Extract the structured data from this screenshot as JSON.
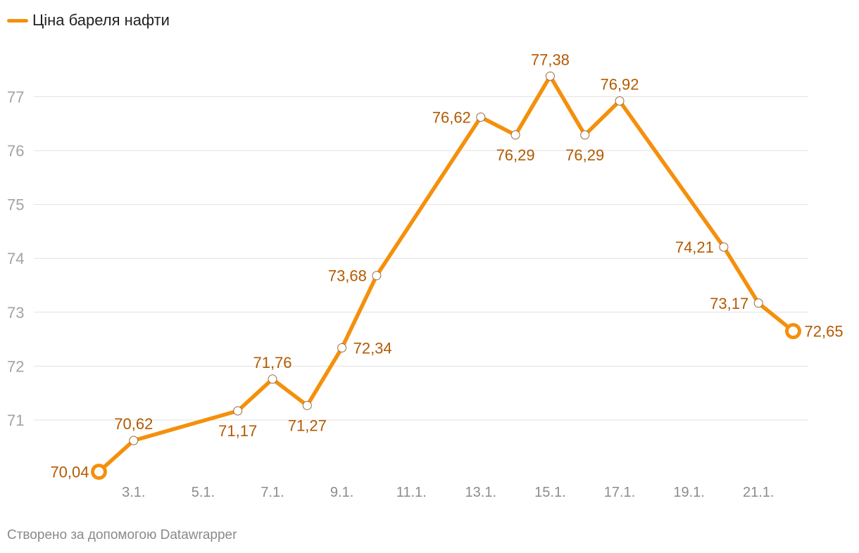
{
  "legend": {
    "label": "Ціна бареля нафти",
    "color": "#f4900c"
  },
  "footer": {
    "credit": "Створено за допомогою Datawrapper"
  },
  "chart_data": {
    "type": "line",
    "title": "",
    "xlabel": "",
    "ylabel": "",
    "ylim": [
      70,
      77.7
    ],
    "yticks": [
      71,
      72,
      73,
      74,
      75,
      76,
      77
    ],
    "xticks": [
      3,
      5,
      7,
      9,
      11,
      13,
      15,
      17,
      19,
      21
    ],
    "xtick_labels": [
      "3.1.",
      "5.1.",
      "7.1.",
      "9.1.",
      "11.1.",
      "13.1.",
      "15.1.",
      "17.1.",
      "19.1.",
      "21.1."
    ],
    "grid": true,
    "legend_position": "top-left",
    "series": [
      {
        "name": "Ціна бареля нафти",
        "color": "#f4900c",
        "label_color": "#b35a00",
        "points": [
          {
            "x": 2,
            "y": 70.04,
            "label": "70,04"
          },
          {
            "x": 3,
            "y": 70.62,
            "label": "70,62"
          },
          {
            "x": 6,
            "y": 71.17,
            "label": "71,17"
          },
          {
            "x": 7,
            "y": 71.76,
            "label": "71,76"
          },
          {
            "x": 8,
            "y": 71.27,
            "label": "71,27"
          },
          {
            "x": 9,
            "y": 72.34,
            "label": "72,34"
          },
          {
            "x": 10,
            "y": 73.68,
            "label": "73,68"
          },
          {
            "x": 13,
            "y": 76.62,
            "label": "76,62"
          },
          {
            "x": 14,
            "y": 76.29,
            "label": "76,29"
          },
          {
            "x": 15,
            "y": 77.38,
            "label": "77,38"
          },
          {
            "x": 16,
            "y": 76.29,
            "label": "76,29"
          },
          {
            "x": 17,
            "y": 76.92,
            "label": "76,92"
          },
          {
            "x": 20,
            "y": 74.21,
            "label": "74,21"
          },
          {
            "x": 21,
            "y": 73.17,
            "label": "73,17"
          },
          {
            "x": 22,
            "y": 72.65,
            "label": "72,65"
          }
        ]
      }
    ]
  }
}
